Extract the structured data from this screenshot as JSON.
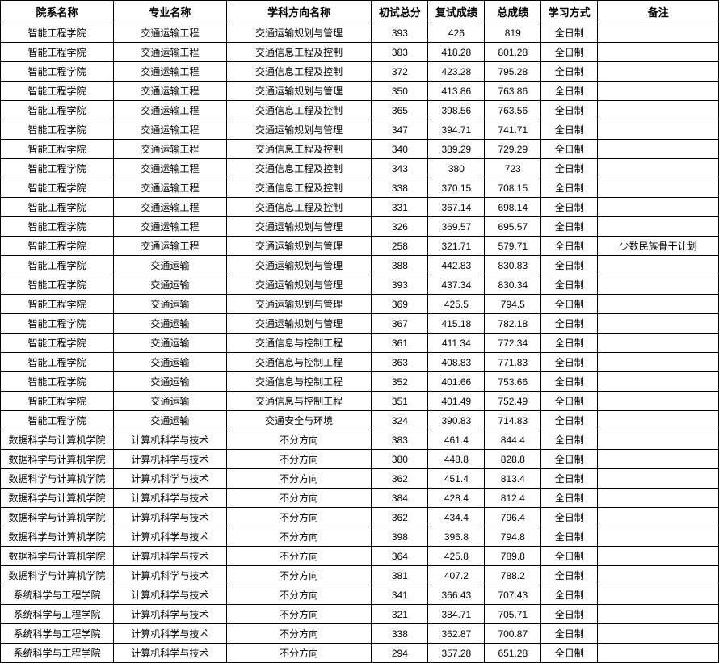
{
  "table": {
    "columns": [
      {
        "key": "dept",
        "label": "院系名称",
        "class": "col-dept"
      },
      {
        "key": "major",
        "label": "专业名称",
        "class": "col-major"
      },
      {
        "key": "direction",
        "label": "学科方向名称",
        "class": "col-direction"
      },
      {
        "key": "score1",
        "label": "初试总分",
        "class": "col-score1"
      },
      {
        "key": "score2",
        "label": "复试成绩",
        "class": "col-score2"
      },
      {
        "key": "score3",
        "label": "总成绩",
        "class": "col-score3"
      },
      {
        "key": "mode",
        "label": "学习方式",
        "class": "col-mode"
      },
      {
        "key": "note",
        "label": "备注",
        "class": "col-note"
      }
    ],
    "rows": [
      {
        "dept": "智能工程学院",
        "major": "交通运输工程",
        "direction": "交通运输规划与管理",
        "score1": "393",
        "score2": "426",
        "score3": "819",
        "mode": "全日制",
        "note": ""
      },
      {
        "dept": "智能工程学院",
        "major": "交通运输工程",
        "direction": "交通信息工程及控制",
        "score1": "383",
        "score2": "418.28",
        "score3": "801.28",
        "mode": "全日制",
        "note": ""
      },
      {
        "dept": "智能工程学院",
        "major": "交通运输工程",
        "direction": "交通信息工程及控制",
        "score1": "372",
        "score2": "423.28",
        "score3": "795.28",
        "mode": "全日制",
        "note": ""
      },
      {
        "dept": "智能工程学院",
        "major": "交通运输工程",
        "direction": "交通运输规划与管理",
        "score1": "350",
        "score2": "413.86",
        "score3": "763.86",
        "mode": "全日制",
        "note": ""
      },
      {
        "dept": "智能工程学院",
        "major": "交通运输工程",
        "direction": "交通信息工程及控制",
        "score1": "365",
        "score2": "398.56",
        "score3": "763.56",
        "mode": "全日制",
        "note": ""
      },
      {
        "dept": "智能工程学院",
        "major": "交通运输工程",
        "direction": "交通运输规划与管理",
        "score1": "347",
        "score2": "394.71",
        "score3": "741.71",
        "mode": "全日制",
        "note": ""
      },
      {
        "dept": "智能工程学院",
        "major": "交通运输工程",
        "direction": "交通信息工程及控制",
        "score1": "340",
        "score2": "389.29",
        "score3": "729.29",
        "mode": "全日制",
        "note": ""
      },
      {
        "dept": "智能工程学院",
        "major": "交通运输工程",
        "direction": "交通信息工程及控制",
        "score1": "343",
        "score2": "380",
        "score3": "723",
        "mode": "全日制",
        "note": ""
      },
      {
        "dept": "智能工程学院",
        "major": "交通运输工程",
        "direction": "交通信息工程及控制",
        "score1": "338",
        "score2": "370.15",
        "score3": "708.15",
        "mode": "全日制",
        "note": ""
      },
      {
        "dept": "智能工程学院",
        "major": "交通运输工程",
        "direction": "交通信息工程及控制",
        "score1": "331",
        "score2": "367.14",
        "score3": "698.14",
        "mode": "全日制",
        "note": ""
      },
      {
        "dept": "智能工程学院",
        "major": "交通运输工程",
        "direction": "交通运输规划与管理",
        "score1": "326",
        "score2": "369.57",
        "score3": "695.57",
        "mode": "全日制",
        "note": ""
      },
      {
        "dept": "智能工程学院",
        "major": "交通运输工程",
        "direction": "交通运输规划与管理",
        "score1": "258",
        "score2": "321.71",
        "score3": "579.71",
        "mode": "全日制",
        "note": "少数民族骨干计划"
      },
      {
        "dept": "智能工程学院",
        "major": "交通运输",
        "direction": "交通运输规划与管理",
        "score1": "388",
        "score2": "442.83",
        "score3": "830.83",
        "mode": "全日制",
        "note": ""
      },
      {
        "dept": "智能工程学院",
        "major": "交通运输",
        "direction": "交通运输规划与管理",
        "score1": "393",
        "score2": "437.34",
        "score3": "830.34",
        "mode": "全日制",
        "note": ""
      },
      {
        "dept": "智能工程学院",
        "major": "交通运输",
        "direction": "交通运输规划与管理",
        "score1": "369",
        "score2": "425.5",
        "score3": "794.5",
        "mode": "全日制",
        "note": ""
      },
      {
        "dept": "智能工程学院",
        "major": "交通运输",
        "direction": "交通运输规划与管理",
        "score1": "367",
        "score2": "415.18",
        "score3": "782.18",
        "mode": "全日制",
        "note": ""
      },
      {
        "dept": "智能工程学院",
        "major": "交通运输",
        "direction": "交通信息与控制工程",
        "score1": "361",
        "score2": "411.34",
        "score3": "772.34",
        "mode": "全日制",
        "note": ""
      },
      {
        "dept": "智能工程学院",
        "major": "交通运输",
        "direction": "交通信息与控制工程",
        "score1": "363",
        "score2": "408.83",
        "score3": "771.83",
        "mode": "全日制",
        "note": ""
      },
      {
        "dept": "智能工程学院",
        "major": "交通运输",
        "direction": "交通信息与控制工程",
        "score1": "352",
        "score2": "401.66",
        "score3": "753.66",
        "mode": "全日制",
        "note": ""
      },
      {
        "dept": "智能工程学院",
        "major": "交通运输",
        "direction": "交通信息与控制工程",
        "score1": "351",
        "score2": "401.49",
        "score3": "752.49",
        "mode": "全日制",
        "note": ""
      },
      {
        "dept": "智能工程学院",
        "major": "交通运输",
        "direction": "交通安全与环境",
        "score1": "324",
        "score2": "390.83",
        "score3": "714.83",
        "mode": "全日制",
        "note": ""
      },
      {
        "dept": "数据科学与计算机学院",
        "major": "计算机科学与技术",
        "direction": "不分方向",
        "score1": "383",
        "score2": "461.4",
        "score3": "844.4",
        "mode": "全日制",
        "note": ""
      },
      {
        "dept": "数据科学与计算机学院",
        "major": "计算机科学与技术",
        "direction": "不分方向",
        "score1": "380",
        "score2": "448.8",
        "score3": "828.8",
        "mode": "全日制",
        "note": ""
      },
      {
        "dept": "数据科学与计算机学院",
        "major": "计算机科学与技术",
        "direction": "不分方向",
        "score1": "362",
        "score2": "451.4",
        "score3": "813.4",
        "mode": "全日制",
        "note": ""
      },
      {
        "dept": "数据科学与计算机学院",
        "major": "计算机科学与技术",
        "direction": "不分方向",
        "score1": "384",
        "score2": "428.4",
        "score3": "812.4",
        "mode": "全日制",
        "note": ""
      },
      {
        "dept": "数据科学与计算机学院",
        "major": "计算机科学与技术",
        "direction": "不分方向",
        "score1": "362",
        "score2": "434.4",
        "score3": "796.4",
        "mode": "全日制",
        "note": ""
      },
      {
        "dept": "数据科学与计算机学院",
        "major": "计算机科学与技术",
        "direction": "不分方向",
        "score1": "398",
        "score2": "396.8",
        "score3": "794.8",
        "mode": "全日制",
        "note": ""
      },
      {
        "dept": "数据科学与计算机学院",
        "major": "计算机科学与技术",
        "direction": "不分方向",
        "score1": "364",
        "score2": "425.8",
        "score3": "789.8",
        "mode": "全日制",
        "note": ""
      },
      {
        "dept": "数据科学与计算机学院",
        "major": "计算机科学与技术",
        "direction": "不分方向",
        "score1": "381",
        "score2": "407.2",
        "score3": "788.2",
        "mode": "全日制",
        "note": ""
      },
      {
        "dept": "系统科学与工程学院",
        "major": "计算机科学与技术",
        "direction": "不分方向",
        "score1": "341",
        "score2": "366.43",
        "score3": "707.43",
        "mode": "全日制",
        "note": ""
      },
      {
        "dept": "系统科学与工程学院",
        "major": "计算机科学与技术",
        "direction": "不分方向",
        "score1": "321",
        "score2": "384.71",
        "score3": "705.71",
        "mode": "全日制",
        "note": ""
      },
      {
        "dept": "系统科学与工程学院",
        "major": "计算机科学与技术",
        "direction": "不分方向",
        "score1": "338",
        "score2": "362.87",
        "score3": "700.87",
        "mode": "全日制",
        "note": ""
      },
      {
        "dept": "系统科学与工程学院",
        "major": "计算机科学与技术",
        "direction": "不分方向",
        "score1": "294",
        "score2": "357.28",
        "score3": "651.28",
        "mode": "全日制",
        "note": ""
      }
    ]
  },
  "styling": {
    "border_color": "#000000",
    "background_color": "#ffffff",
    "header_fontsize": 13,
    "cell_fontsize": 12,
    "font_family": "Microsoft YaHei, SimSun, Arial, sans-serif"
  }
}
